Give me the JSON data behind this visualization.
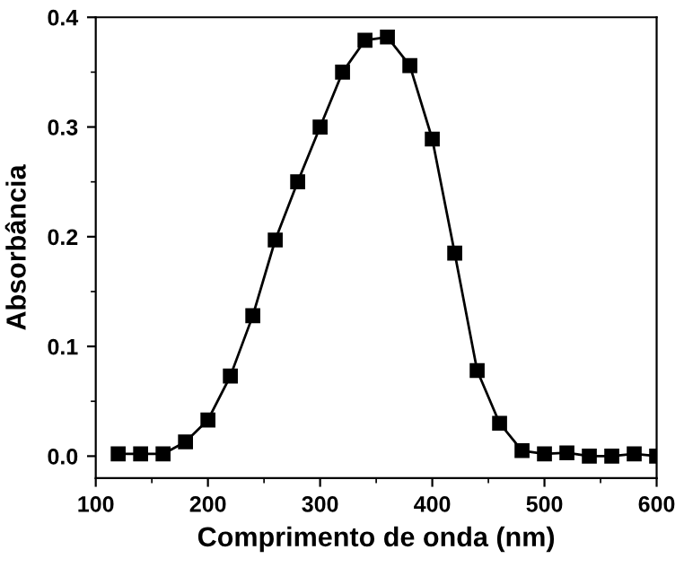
{
  "chart_data": {
    "type": "line",
    "xlabel": "Comprimento de onda (nm)",
    "ylabel": "Absorbância",
    "series": [
      {
        "color": "#000000",
        "x": [
          120,
          140,
          160,
          180,
          200,
          220,
          240,
          260,
          280,
          300,
          320,
          340,
          360,
          380,
          400,
          420,
          440,
          460,
          480,
          500,
          520,
          540,
          560,
          580,
          600
        ],
        "values": [
          0.002,
          0.002,
          0.002,
          0.013,
          0.033,
          0.073,
          0.128,
          0.197,
          0.25,
          0.3,
          0.35,
          0.379,
          0.382,
          0.356,
          0.289,
          0.185,
          0.078,
          0.03,
          0.005,
          0.002,
          0.003,
          0.0,
          0.0,
          0.002,
          0.0
        ]
      }
    ],
    "xlim": [
      100,
      600
    ],
    "ylim": [
      -0.02,
      0.4
    ],
    "xticks": [
      100,
      200,
      300,
      400,
      500,
      600
    ],
    "yticks": [
      {
        "value": 0,
        "label": "0.0"
      },
      0.1,
      0.2,
      0.3,
      0.4
    ],
    "marker": "square",
    "line_style": "solid"
  }
}
